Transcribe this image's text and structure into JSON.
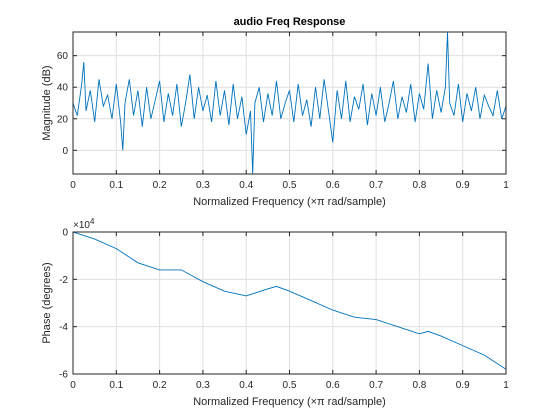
{
  "chart_data": [
    {
      "type": "line",
      "title": "audio Freq Response",
      "xlabel": "Normalized Frequency  (×π rad/sample)",
      "ylabel": "Magnitude (dB)",
      "xlim": [
        0,
        1
      ],
      "ylim": [
        -15,
        75
      ],
      "xticks": [
        "0",
        "0.1",
        "0.2",
        "0.3",
        "0.4",
        "0.5",
        "0.6",
        "0.7",
        "0.8",
        "0.9",
        "1"
      ],
      "yticks": [
        "0",
        "20",
        "40",
        "60"
      ],
      "grid": true,
      "line_color": "#0072bd",
      "series": [
        {
          "x": [
            0,
            0.01,
            0.02,
            0.025,
            0.03,
            0.04,
            0.05,
            0.06,
            0.07,
            0.08,
            0.09,
            0.1,
            0.11,
            0.115,
            0.12,
            0.13,
            0.14,
            0.15,
            0.16,
            0.17,
            0.18,
            0.19,
            0.2,
            0.21,
            0.22,
            0.23,
            0.24,
            0.25,
            0.26,
            0.27,
            0.28,
            0.29,
            0.3,
            0.31,
            0.32,
            0.33,
            0.34,
            0.35,
            0.36,
            0.37,
            0.38,
            0.39,
            0.4,
            0.41,
            0.415,
            0.42,
            0.43,
            0.44,
            0.45,
            0.46,
            0.47,
            0.48,
            0.49,
            0.5,
            0.51,
            0.52,
            0.53,
            0.54,
            0.55,
            0.56,
            0.57,
            0.58,
            0.59,
            0.6,
            0.61,
            0.62,
            0.63,
            0.64,
            0.65,
            0.66,
            0.67,
            0.68,
            0.69,
            0.7,
            0.71,
            0.72,
            0.73,
            0.74,
            0.75,
            0.76,
            0.77,
            0.78,
            0.79,
            0.8,
            0.81,
            0.82,
            0.83,
            0.84,
            0.85,
            0.86,
            0.865,
            0.87,
            0.88,
            0.89,
            0.9,
            0.91,
            0.92,
            0.93,
            0.94,
            0.95,
            0.96,
            0.97,
            0.98,
            0.99,
            1.0
          ],
          "y": [
            30,
            22,
            42,
            56,
            25,
            38,
            18,
            45,
            28,
            35,
            20,
            42,
            18,
            0,
            30,
            45,
            22,
            38,
            15,
            40,
            20,
            32,
            44,
            18,
            36,
            22,
            42,
            15,
            30,
            48,
            20,
            40,
            25,
            35,
            18,
            44,
            22,
            38,
            16,
            42,
            20,
            34,
            10,
            25,
            -15,
            30,
            40,
            18,
            36,
            22,
            44,
            20,
            30,
            38,
            18,
            42,
            22,
            32,
            15,
            40,
            20,
            45,
            25,
            5,
            38,
            20,
            44,
            18,
            34,
            26,
            42,
            16,
            36,
            22,
            40,
            18,
            30,
            44,
            20,
            34,
            24,
            42,
            18,
            36,
            26,
            55,
            20,
            38,
            24,
            40,
            75,
            30,
            22,
            42,
            18,
            36,
            25,
            40,
            20,
            35,
            28,
            22,
            38,
            20,
            28
          ]
        }
      ]
    },
    {
      "type": "line",
      "title": "",
      "xlabel": "Normalized Frequency  (×π rad/sample)",
      "ylabel": "Phase (degrees)",
      "xlim": [
        0,
        1
      ],
      "ylim": [
        -6,
        0
      ],
      "exponent_label": "×10",
      "exponent_power": "4",
      "xticks": [
        "0",
        "0.1",
        "0.2",
        "0.3",
        "0.4",
        "0.5",
        "0.6",
        "0.7",
        "0.8",
        "0.9",
        "1"
      ],
      "yticks": [
        "0",
        "-2",
        "-4",
        "-6"
      ],
      "grid": true,
      "line_color": "#0072bd",
      "series": [
        {
          "x": [
            0,
            0.05,
            0.1,
            0.15,
            0.2,
            0.25,
            0.3,
            0.35,
            0.4,
            0.45,
            0.47,
            0.5,
            0.55,
            0.6,
            0.65,
            0.7,
            0.75,
            0.8,
            0.82,
            0.85,
            0.9,
            0.95,
            1.0
          ],
          "y": [
            0,
            -0.3,
            -0.7,
            -1.3,
            -1.6,
            -1.6,
            -2.1,
            -2.5,
            -2.7,
            -2.4,
            -2.3,
            -2.5,
            -2.9,
            -3.3,
            -3.6,
            -3.7,
            -4.0,
            -4.3,
            -4.2,
            -4.4,
            -4.8,
            -5.2,
            -5.8
          ]
        }
      ]
    }
  ]
}
